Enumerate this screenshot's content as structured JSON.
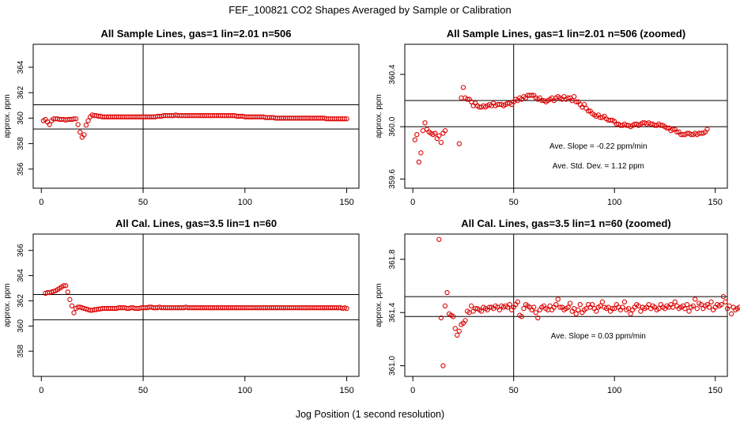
{
  "page": {
    "title": "FEF_100821  CO2 Shapes Averaged by Sample or Calibration",
    "xlabel": "Jog Position (1 second resolution)"
  },
  "colors": {
    "points": "#dd0000",
    "axes": "#000000"
  },
  "chart_data": [
    {
      "type": "scatter",
      "title": "All Sample Lines, gas=1 lin=2.01 n=506",
      "xlabel": "",
      "ylabel": "approx. ppm",
      "xlim": [
        -4,
        156
      ],
      "ylim": [
        354.5,
        365.8
      ],
      "xticks": [
        0,
        50,
        100,
        150
      ],
      "yticks": [
        356,
        358,
        360,
        362,
        364
      ],
      "hlines": [
        361.05,
        359.15
      ],
      "vline": 50,
      "annotations": [],
      "segments": [
        [
          1,
          [
            359.8,
            359.9,
            359.7,
            359.5,
            359.8,
            359.95,
            359.95,
            359.95,
            359.9,
            359.9,
            359.9,
            359.85,
            359.9,
            359.9,
            359.9,
            359.95,
            359.95,
            359.5,
            358.9,
            358.5,
            358.7,
            359.45,
            359.8,
            360.1,
            360.25,
            360.2
          ]
        ],
        [
          27,
          [
            360.2,
            360.15,
            360.15,
            360.1,
            360.1,
            360.1,
            360.1,
            360.1,
            360.1,
            360.1,
            360.1,
            360.1,
            360.1,
            360.1,
            360.1,
            360.1,
            360.1,
            360.1,
            360.1,
            360.1,
            360.1,
            360.1,
            360.1,
            360.1,
            360.1,
            360.1,
            360.1,
            360.1,
            360.1,
            360.1,
            360.15,
            360.15,
            360.15,
            360.2,
            360.2,
            360.2,
            360.2,
            360.2,
            360.2,
            360.25,
            360.2,
            360.2,
            360.2,
            360.2,
            360.2,
            360.2,
            360.2,
            360.2,
            360.2,
            360.2,
            360.2,
            360.2,
            360.2,
            360.2,
            360.2,
            360.2,
            360.2,
            360.2,
            360.2,
            360.2,
            360.2,
            360.2,
            360.2,
            360.2,
            360.2,
            360.2,
            360.2,
            360.2,
            360.2,
            360.15,
            360.15,
            360.15,
            360.15,
            360.1,
            360.1,
            360.1,
            360.1,
            360.1,
            360.1,
            360.1,
            360.1,
            360.1,
            360.1,
            360.05,
            360.05,
            360.05,
            360.05,
            360.05,
            360.0,
            360.0,
            360.0,
            360.0,
            360.0,
            360.0,
            360.0,
            360.0,
            360.0,
            360.0,
            360.0,
            360.0,
            360.0,
            360.0,
            360.0,
            360.0,
            360.0,
            360.0,
            360.0,
            360.0,
            360.0,
            360.0,
            360.0,
            360.0,
            360.0,
            359.95,
            359.95,
            359.95,
            359.95,
            359.95,
            359.95,
            359.95,
            359.95,
            359.95,
            359.95,
            359.95
          ]
        ]
      ]
    },
    {
      "type": "scatter",
      "title": "All Sample Lines, gas=1 lin=2.01 n=506 (zoomed)",
      "xlabel": "",
      "ylabel": "approx. ppm",
      "xlim": [
        -4,
        156
      ],
      "ylim": [
        359.53,
        360.63
      ],
      "xticks": [
        0,
        50,
        100,
        150
      ],
      "yticks": [
        359.6,
        360.0,
        360.4
      ],
      "hlines": [
        360.2,
        360.0
      ],
      "vline": 50,
      "annotations": [
        "Ave. Slope =  -0.22  ppm/min",
        "Ave. Std. Dev. =  1.12  ppm"
      ],
      "segments": [
        [
          1,
          [
            359.9,
            359.94,
            359.73,
            359.8,
            359.97,
            360.03,
            359.98,
            359.96,
            359.95,
            359.94,
            359.95,
            359.91,
            359.93,
            359.88,
            359.95,
            359.97
          ]
        ],
        [
          23,
          [
            359.87,
            360.22,
            360.3,
            360.22,
            360.21,
            360.21,
            360.19,
            360.16,
            360.18,
            360.16,
            360.15,
            360.15,
            360.16,
            360.15,
            360.16,
            360.17,
            360.16,
            360.18,
            360.16,
            360.17,
            360.17,
            360.17,
            360.16,
            360.17,
            360.18,
            360.18,
            360.17,
            360.19,
            360.21,
            360.2,
            360.22,
            360.21,
            360.23,
            360.22,
            360.24,
            360.24,
            360.24,
            360.24,
            360.22,
            360.21,
            360.22,
            360.2,
            360.2,
            360.19,
            360.2,
            360.21,
            360.22,
            360.2,
            360.22,
            360.23,
            360.22,
            360.21,
            360.23,
            360.21,
            360.22,
            360.22,
            360.2,
            360.23,
            360.19,
            360.19,
            360.17,
            360.15,
            360.17,
            360.14,
            360.12,
            360.12,
            360.1,
            360.09,
            360.08,
            360.09,
            360.07,
            360.07,
            360.08,
            360.06,
            360.05,
            360.05,
            360.05,
            360.04,
            360.02,
            360.02,
            360.01,
            360.01,
            360.02,
            360.01,
            360.01,
            360.0,
            360.01,
            360.02,
            360.02,
            360.01,
            360.02,
            360.03,
            360.03,
            360.02,
            360.03,
            360.02,
            360.02,
            360.01,
            360.01,
            360.02,
            360.01,
            360.01,
            360.0,
            359.99,
            359.99,
            359.97,
            359.98,
            359.98,
            359.96,
            359.96,
            359.94,
            359.94,
            359.94,
            359.95,
            359.95,
            359.94,
            359.94,
            359.95,
            359.94,
            359.95,
            359.95,
            359.95,
            359.96,
            359.98
          ]
        ]
      ]
    },
    {
      "type": "scatter",
      "title": "All Cal. Lines, gas=3.5 lin=1 n=60",
      "xlabel": "",
      "ylabel": "approx. ppm",
      "xlim": [
        -4,
        156
      ],
      "ylim": [
        356.0,
        367.3
      ],
      "xticks": [
        0,
        50,
        100,
        150
      ],
      "yticks": [
        358,
        360,
        362,
        364,
        366
      ],
      "hlines": [
        362.5,
        360.5
      ],
      "vline": 50,
      "annotations": [],
      "segments": [
        [
          2,
          [
            362.6,
            362.65,
            362.65,
            362.7,
            362.75,
            362.8,
            362.9,
            363.0,
            363.1,
            363.2,
            363.2,
            362.7,
            362.1,
            361.6,
            361.05,
            361.4,
            361.5,
            361.5,
            361.45,
            361.4,
            361.35,
            361.3,
            361.25,
            361.25,
            361.3,
            361.3,
            361.35,
            361.35,
            361.4,
            361.4,
            361.4,
            361.4,
            361.4,
            361.4,
            361.4,
            361.4,
            361.45,
            361.45,
            361.45,
            361.45,
            361.4,
            361.4,
            361.45,
            361.45,
            361.4,
            361.4,
            361.4,
            361.45,
            361.45,
            361.45,
            361.45,
            361.5,
            361.5,
            361.45,
            361.45,
            361.45,
            361.5,
            361.45,
            361.45,
            361.45,
            361.45,
            361.45,
            361.45,
            361.45,
            361.45,
            361.45,
            361.45,
            361.45,
            361.45,
            361.5,
            361.45,
            361.45,
            361.45,
            361.45,
            361.45,
            361.45,
            361.45,
            361.45,
            361.45,
            361.45,
            361.45,
            361.45,
            361.45,
            361.45,
            361.45,
            361.45,
            361.45,
            361.45,
            361.45,
            361.45,
            361.45,
            361.45,
            361.45,
            361.45,
            361.45,
            361.45,
            361.45,
            361.45,
            361.45,
            361.45,
            361.45,
            361.45,
            361.45,
            361.45,
            361.45,
            361.45,
            361.45,
            361.45,
            361.45,
            361.45,
            361.45,
            361.45,
            361.45,
            361.45,
            361.45,
            361.45,
            361.45,
            361.45,
            361.45,
            361.45,
            361.45,
            361.45,
            361.45,
            361.45,
            361.45,
            361.45,
            361.45,
            361.45,
            361.45,
            361.45,
            361.45,
            361.45,
            361.45,
            361.45,
            361.45,
            361.45,
            361.45,
            361.45,
            361.45,
            361.45,
            361.45,
            361.45,
            361.45,
            361.45,
            361.45,
            361.45,
            361.4,
            361.45,
            361.4
          ]
        ]
      ]
    },
    {
      "type": "scatter",
      "title": "All Cal. Lines, gas=3.5 lin=1 n=60 (zoomed)",
      "xlabel": "",
      "ylabel": "approx. ppm",
      "xlim": [
        -4,
        156
      ],
      "ylim": [
        360.92,
        361.99
      ],
      "xticks": [
        0,
        50,
        100,
        150
      ],
      "yticks": [
        361.0,
        361.4,
        361.8
      ],
      "hlines": [
        361.52,
        361.37
      ],
      "vline": 50,
      "annotations": [
        "Ave. Slope =  0.03  ppm/min"
      ],
      "segments": [
        [
          13,
          [
            361.95,
            361.36,
            361.0,
            361.45,
            361.55,
            361.39,
            361.38,
            361.37,
            361.28,
            361.23,
            361.26,
            361.31,
            361.32,
            361.34,
            361.41,
            361.4,
            361.45,
            361.41,
            361.43,
            361.43,
            361.42,
            361.41,
            361.44,
            361.43,
            361.42,
            361.44,
            361.44,
            361.43,
            361.45,
            361.44,
            361.42,
            361.45,
            361.44,
            361.45,
            361.44,
            361.46,
            361.42,
            361.44,
            361.46,
            361.48,
            361.38,
            361.37,
            361.43,
            361.46,
            361.45,
            361.44,
            361.42,
            361.44,
            361.4,
            361.36,
            361.42,
            361.44,
            361.45,
            361.43,
            361.42,
            361.45,
            361.42,
            361.44,
            361.46,
            361.5,
            361.44,
            361.44,
            361.42,
            361.43,
            361.44,
            361.47,
            361.41,
            361.43,
            361.39,
            361.42,
            361.46,
            361.4,
            361.42,
            361.43,
            361.46,
            361.44,
            361.46,
            361.43,
            361.41,
            361.44,
            361.45,
            361.48,
            361.44,
            361.43,
            361.44,
            361.41,
            361.43,
            361.43,
            361.46,
            361.44,
            361.42,
            361.44,
            361.48,
            361.42,
            361.43,
            361.39,
            361.42,
            361.44,
            361.46,
            361.45,
            361.41,
            361.44,
            361.43,
            361.44,
            361.46,
            361.43,
            361.45,
            361.44,
            361.42,
            361.43,
            361.46,
            361.44,
            361.43,
            361.45,
            361.44,
            361.46,
            361.44,
            361.48,
            361.45,
            361.43,
            361.44,
            361.45,
            361.43,
            361.46,
            361.41,
            361.44,
            361.45,
            361.5,
            361.43,
            361.47,
            361.46,
            361.43,
            361.45,
            361.46,
            361.44,
            361.48,
            361.42,
            361.44,
            361.46,
            361.45,
            361.46,
            361.52,
            361.48,
            361.43,
            361.45,
            361.39,
            361.44,
            361.42,
            361.43,
            361.44
          ]
        ]
      ]
    }
  ]
}
